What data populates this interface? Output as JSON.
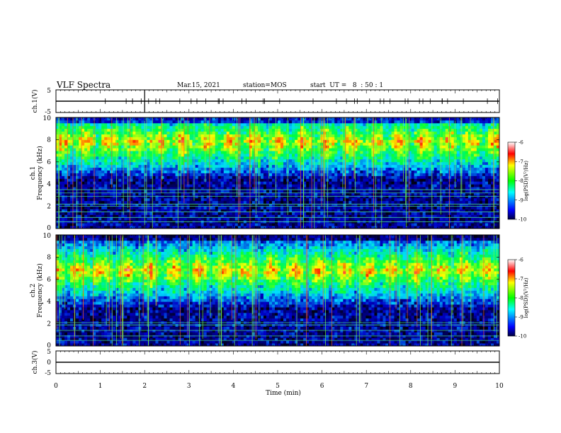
{
  "header": {
    "title": "VLF Spectra",
    "date": "Mar.15, 2021",
    "station": "station=MOS",
    "start": "start  UT =   8  : 50 : 1"
  },
  "chart_data": [
    {
      "type": "line",
      "name": "ch1-waveform",
      "ylabel": "ch.1(V)",
      "ylim": [
        -5,
        5
      ],
      "yticks": [
        "5",
        "-5"
      ],
      "x": [
        0,
        10
      ],
      "y": [
        0,
        0
      ]
    },
    {
      "type": "heatmap",
      "name": "ch1-spectrogram",
      "ylabel_top": "ch.1",
      "ylabel": "Frequency (kHz)",
      "ylim": [
        0,
        10
      ],
      "yticks": [
        "0",
        "2",
        "4",
        "6",
        "8",
        "10"
      ],
      "xlim": [
        0,
        10
      ],
      "colorbar": {
        "label": "log(PSD)(V²/Hz)",
        "range": [
          -10,
          -6
        ],
        "ticks": [
          "-6",
          "-7",
          "-8",
          "-9",
          "-10"
        ]
      },
      "band_center_khz": 7.8,
      "lines_khz": [
        0.6,
        1.0,
        1.5,
        2.0,
        2.2,
        2.9,
        3.2,
        3.5
      ]
    },
    {
      "type": "heatmap",
      "name": "ch2-spectrogram",
      "ylabel_top": "ch.2",
      "ylabel": "Frequency (kHz)",
      "ylim": [
        0,
        10
      ],
      "yticks": [
        "0",
        "2",
        "4",
        "6",
        "8",
        "10"
      ],
      "xlim": [
        0,
        10
      ],
      "colorbar": {
        "label": "log(PSD)(V²/Hz)",
        "range": [
          -10,
          -6
        ],
        "ticks": [
          "-6",
          "-7",
          "-8",
          "-9",
          "-10"
        ]
      },
      "band_center_khz": 6.8,
      "lines_khz": [
        0.5,
        0.9,
        1.4,
        1.9,
        2.1
      ]
    },
    {
      "type": "line",
      "name": "ch3-waveform",
      "ylabel": "ch.3(V)",
      "ylim": [
        -5,
        5
      ],
      "yticks": [
        "5",
        "0",
        "-5"
      ],
      "x": [
        0,
        10
      ],
      "y": [
        0,
        0
      ]
    }
  ],
  "xaxis": {
    "label": "Time (min)",
    "ticks": [
      "0",
      "1",
      "2",
      "3",
      "4",
      "5",
      "6",
      "7",
      "8",
      "9",
      "10"
    ]
  }
}
